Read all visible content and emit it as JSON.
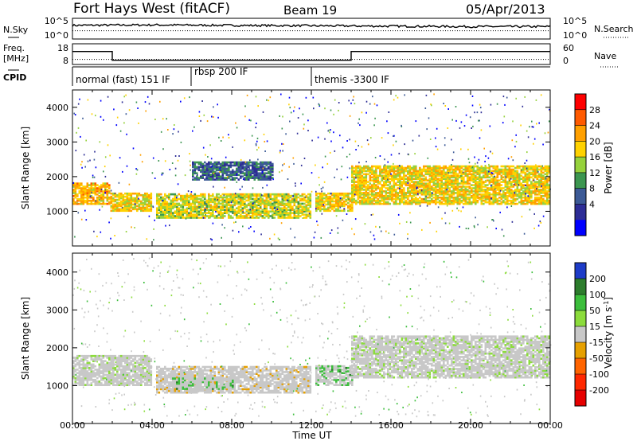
{
  "header": {
    "station": "Fort Hays West (fitACF)",
    "beam": "Beam 19",
    "date": "05/Apr/2013"
  },
  "noise_panel": {
    "left_label": "N.Sky",
    "right_label": "N.Search",
    "left_ticks": [
      "10^5",
      "10^0"
    ],
    "right_ticks": [
      "10^5",
      "10^0"
    ]
  },
  "freq_panel": {
    "left_label_1": "Freq.",
    "left_label_2": "[MHz]",
    "right_label": "Nave",
    "left_ticks": [
      "18",
      "8"
    ],
    "right_ticks": [
      "60",
      "0"
    ]
  },
  "cpid_panel": {
    "label": "CPID",
    "modes": [
      "normal (fast) 151 IF",
      "rbsp 200 IF",
      "themis -3300 IF"
    ]
  },
  "power_colorbar": {
    "label": "Power [dB]",
    "ticks": [
      "28",
      "24",
      "20",
      "16",
      "12",
      "8",
      "4"
    ],
    "colors": [
      "#ff0000",
      "#ff5a00",
      "#ffa000",
      "#ffd200",
      "#96d23c",
      "#3c9650",
      "#3c5a96",
      "#2d2d96",
      "#0000ff"
    ]
  },
  "velocity_colorbar": {
    "label_prefix": "Velocity [m s",
    "label_sup": "-1",
    "label_suffix": "]",
    "ticks": [
      "200",
      "100",
      "50",
      "15",
      "-15",
      "-50",
      "-100",
      "-200"
    ],
    "colors": [
      "#1e3cc8",
      "#2d7d2d",
      "#3cbe3c",
      "#8cdc3c",
      "#c8c8c8",
      "#e6a000",
      "#ff6400",
      "#ff2800",
      "#e60000"
    ]
  },
  "chart_data": [
    {
      "type": "line",
      "title": "N.Sky / N.Search",
      "x": [
        "00:00",
        "04:00",
        "08:00",
        "12:00",
        "16:00",
        "20:00",
        "00:00"
      ],
      "series": [
        {
          "name": "N.Sky",
          "values": [
            3.3,
            3.4,
            3.3,
            3.2,
            3.1,
            3.0,
            3.0
          ]
        },
        {
          "name": "N.Search",
          "values": [
            2.0,
            2.0,
            2.0,
            2.0,
            2.0,
            2.0,
            2.0
          ]
        }
      ]
    },
    {
      "type": "line",
      "title": "Freq. / Nave",
      "x_hours": [
        0,
        2,
        2,
        14,
        14,
        24
      ],
      "series": [
        {
          "name": "Freq.",
          "values": [
            14.5,
            14.5,
            9.5,
            9.5,
            14.5,
            14.5
          ]
        },
        {
          "name": "Nave",
          "values": [
            12,
            12,
            12,
            12,
            12,
            12
          ]
        }
      ]
    },
    {
      "type": "heatmap",
      "title": "Power [dB]",
      "xlabel": "Time UT",
      "ylabel": "Slant Range [km]",
      "xlim": [
        0,
        24
      ],
      "ylim": [
        0,
        4500
      ],
      "xticks": [
        "00:00",
        "04:00",
        "08:00",
        "12:00",
        "16:00",
        "20:00",
        "00:00"
      ],
      "yticks": [
        1000,
        2000,
        3000,
        4000
      ],
      "bands": [
        {
          "hours": [
            0.0,
            1.9
          ],
          "range_km": [
            1200,
            1800
          ],
          "power_db": 20
        },
        {
          "hours": [
            1.9,
            4.0
          ],
          "range_km": [
            1000,
            1500
          ],
          "power_db": 18
        },
        {
          "hours": [
            4.2,
            11.9
          ],
          "range_km": [
            800,
            1500
          ],
          "power_db": 16
        },
        {
          "hours": [
            6.0,
            10.0
          ],
          "range_km": [
            1900,
            2400
          ],
          "power_db": 6
        },
        {
          "hours": [
            12.2,
            14.0
          ],
          "range_km": [
            1000,
            1500
          ],
          "power_db": 18
        },
        {
          "hours": [
            14.0,
            24.0
          ],
          "range_km": [
            1200,
            2300
          ],
          "power_db": 18
        }
      ]
    },
    {
      "type": "heatmap",
      "title": "Velocity [m s-1]",
      "xlabel": "Time UT",
      "ylabel": "Slant Range [km]",
      "xlim": [
        0,
        24
      ],
      "ylim": [
        0,
        4500
      ],
      "xticks": [
        "00:00",
        "04:00",
        "08:00",
        "12:00",
        "16:00",
        "20:00",
        "00:00"
      ],
      "yticks": [
        1000,
        2000,
        3000,
        4000
      ],
      "bands": [
        {
          "hours": [
            0.0,
            4.0
          ],
          "range_km": [
            1000,
            1800
          ],
          "velocity": 0
        },
        {
          "hours": [
            4.2,
            11.9
          ],
          "range_km": [
            800,
            1500
          ],
          "velocity": -10
        },
        {
          "hours": [
            5.0,
            8.0
          ],
          "range_km": [
            900,
            1200
          ],
          "velocity": 20
        },
        {
          "hours": [
            12.2,
            14.0
          ],
          "range_km": [
            1000,
            1500
          ],
          "velocity": 20
        },
        {
          "hours": [
            14.0,
            24.0
          ],
          "range_km": [
            1200,
            2300
          ],
          "velocity": 0
        }
      ]
    }
  ]
}
